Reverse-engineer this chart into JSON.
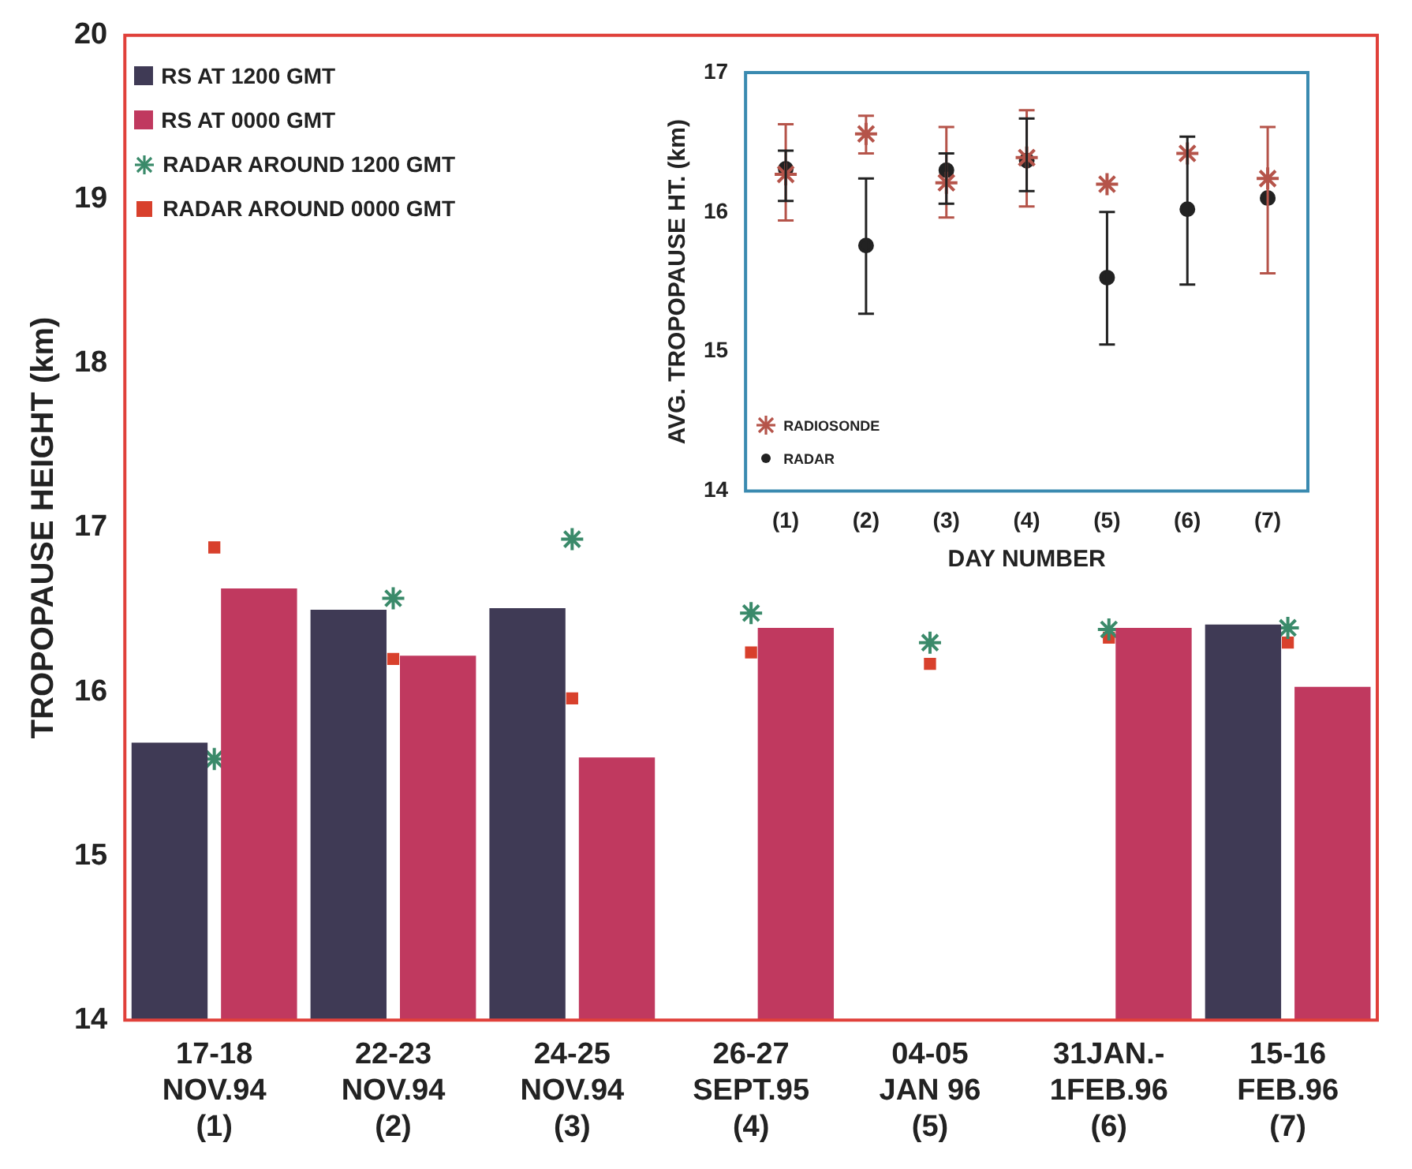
{
  "chart_data": [
    {
      "type": "bar",
      "ylabel": "TROPOPAUSE HEIGHT (km)",
      "categories": [
        "17-18\nNOV.94\n(1)",
        "22-23\nNOV.94\n(2)",
        "24-25\nNOV.94\n(3)",
        "26-27\nSEPT.95\n(4)",
        "04-05\nJAN 96\n(5)",
        "31JAN.-\n1FEB.96\n(6)",
        "15-16\nFEB.96\n(7)"
      ],
      "ylim": [
        14,
        20
      ],
      "yticks": [
        14,
        15,
        16,
        17,
        18,
        19,
        20
      ],
      "legend": "top left",
      "grid": false,
      "series": [
        {
          "name": "RS AT 1200 GMT",
          "color": "#3f3a55",
          "values": [
            15.69,
            16.5,
            16.51,
            null,
            null,
            null,
            16.41
          ]
        },
        {
          "name": "RS AT 0000 GMT",
          "color": "#c0395f",
          "values": [
            16.63,
            16.22,
            15.6,
            16.39,
            null,
            16.39,
            16.03
          ]
        },
        {
          "name": "RADAR AROUND 1200 GMT",
          "type": "scatter",
          "marker": "cross",
          "color": "#3a8a6a",
          "values": [
            15.59,
            16.57,
            16.93,
            16.48,
            16.3,
            16.38,
            16.39
          ]
        },
        {
          "name": "RADAR AROUND 0000 GMT",
          "type": "scatter",
          "marker": "square",
          "color": "#d8402c",
          "values": [
            16.88,
            16.2,
            15.96,
            16.24,
            16.17,
            16.33,
            16.3
          ]
        }
      ]
    },
    {
      "type": "scatter",
      "xlabel": "DAY NUMBER",
      "ylabel": "AVG. TROPOPAUSE HT. (km)",
      "categories": [
        "(1)",
        "(2)",
        "(3)",
        "(4)",
        "(5)",
        "(6)",
        "(7)"
      ],
      "ylim": [
        14,
        17
      ],
      "yticks": [
        14,
        15,
        16,
        17
      ],
      "legend": "bottom left",
      "grid": false,
      "series": [
        {
          "name": "RADIOSONDE",
          "marker": "cross",
          "color": "#b5544a",
          "values": [
            16.27,
            16.56,
            16.21,
            16.39,
            16.2,
            16.42,
            16.24
          ],
          "errors": [
            [
              15.94,
              16.63
            ],
            [
              16.42,
              16.69
            ],
            [
              15.96,
              16.61
            ],
            [
              16.04,
              16.73
            ],
            null,
            null,
            [
              15.56,
              16.61
            ]
          ]
        },
        {
          "name": "RADAR",
          "marker": "circle",
          "color": "#222222",
          "values": [
            16.31,
            15.76,
            16.3,
            16.37,
            15.53,
            16.02,
            16.1
          ],
          "errors": [
            [
              16.08,
              16.44
            ],
            [
              15.27,
              16.24
            ],
            [
              16.06,
              16.42
            ],
            [
              16.15,
              16.67
            ],
            [
              15.05,
              16.0
            ],
            [
              15.48,
              16.54
            ],
            null
          ]
        }
      ]
    }
  ]
}
